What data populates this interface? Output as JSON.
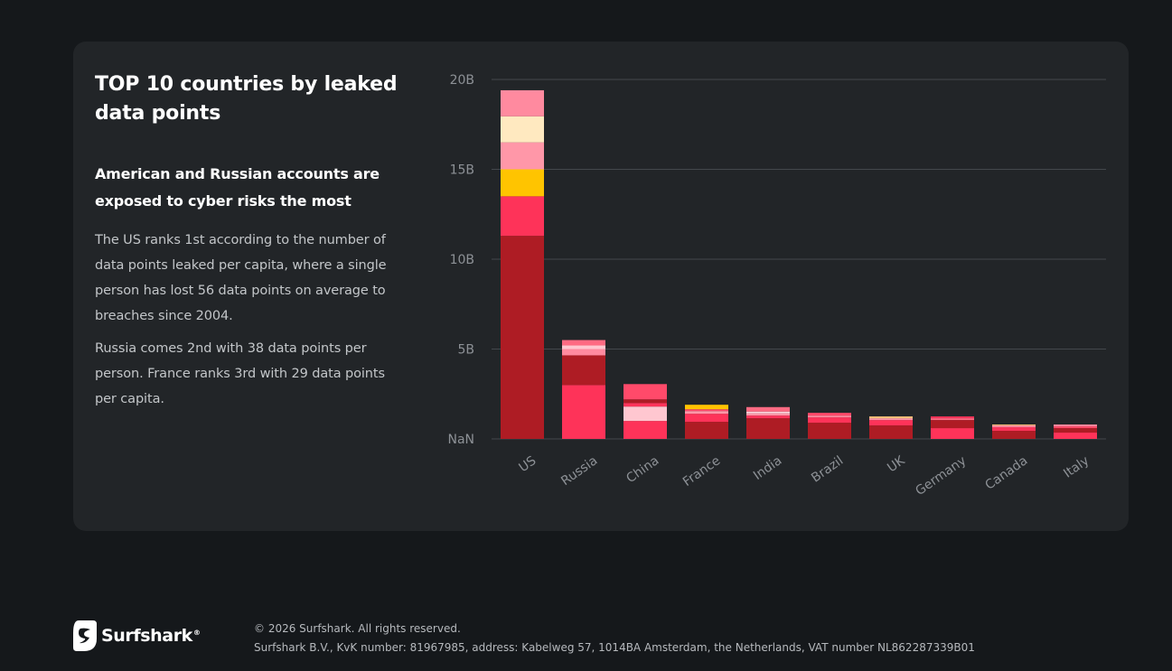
{
  "card": {
    "title": "TOP 10 countries by leaked data points",
    "subtitle": "American and Russian accounts are exposed to cyber risks the most",
    "paragraphs": [
      "The US ranks 1st according to the number of data points leaked per capita, where a single person has lost 56 data points on average to breaches since 2004.",
      "Russia comes 2nd with 38 data points per person. France ranks 3rd with 29 data points per capita."
    ]
  },
  "chart_data": {
    "type": "bar",
    "stacked": true,
    "categories": [
      "US",
      "Russia",
      "China",
      "France",
      "India",
      "Brazil",
      "UK",
      "Germany",
      "Canada",
      "Italy"
    ],
    "yticks": [
      {
        "value": 0,
        "label": "NaN"
      },
      {
        "value": 5,
        "label": "5B"
      },
      {
        "value": 10,
        "label": "10B"
      },
      {
        "value": 15,
        "label": "15B"
      },
      {
        "value": 20,
        "label": "20B"
      }
    ],
    "ylim": [
      0,
      20
    ],
    "unit": "billions",
    "grid": true,
    "legend": "none",
    "segments": [
      [
        {
          "value": 11.3,
          "color": "#ae1c24"
        },
        {
          "value": 2.2,
          "color": "#fe3359"
        },
        {
          "value": 1.5,
          "color": "#ffc400"
        },
        {
          "value": 1.5,
          "color": "#ff97a8"
        },
        {
          "value": 1.45,
          "color": "#ffe9c0"
        },
        {
          "value": 1.45,
          "color": "#ff8a9f"
        }
      ],
      [
        {
          "value": 3.0,
          "color": "#fe3359"
        },
        {
          "value": 1.65,
          "color": "#ae1c24"
        },
        {
          "value": 0.35,
          "color": "#ff8a9f"
        },
        {
          "value": 0.2,
          "color": "#ffc7d0"
        },
        {
          "value": 0.3,
          "color": "#ff6b83"
        }
      ],
      [
        {
          "value": 1.0,
          "color": "#fe3359"
        },
        {
          "value": 0.8,
          "color": "#ffc7d0"
        },
        {
          "value": 0.2,
          "color": "#fe3359"
        },
        {
          "value": 0.2,
          "color": "#ae1c24"
        },
        {
          "value": 0.85,
          "color": "#ff4a6a"
        }
      ],
      [
        {
          "value": 0.95,
          "color": "#ae1c24"
        },
        {
          "value": 0.45,
          "color": "#fe3359"
        },
        {
          "value": 0.15,
          "color": "#ff97a8"
        },
        {
          "value": 0.1,
          "color": "#ff4a6a"
        },
        {
          "value": 0.25,
          "color": "#ffc400"
        }
      ],
      [
        {
          "value": 1.15,
          "color": "#ae1c24"
        },
        {
          "value": 0.15,
          "color": "#fe3359"
        },
        {
          "value": 0.12,
          "color": "#ff97a8"
        },
        {
          "value": 0.1,
          "color": "#ffd5dc"
        },
        {
          "value": 0.25,
          "color": "#ff6b83"
        }
      ],
      [
        {
          "value": 0.9,
          "color": "#ae1c24"
        },
        {
          "value": 0.3,
          "color": "#fe3359"
        },
        {
          "value": 0.1,
          "color": "#ff8a9f"
        },
        {
          "value": 0.15,
          "color": "#ff4a6a"
        }
      ],
      [
        {
          "value": 0.75,
          "color": "#ae1c24"
        },
        {
          "value": 0.3,
          "color": "#fe3359"
        },
        {
          "value": 0.1,
          "color": "#ff97a8"
        },
        {
          "value": 0.1,
          "color": "#ffc47a"
        }
      ],
      [
        {
          "value": 0.6,
          "color": "#fe3359"
        },
        {
          "value": 0.45,
          "color": "#ae1c24"
        },
        {
          "value": 0.1,
          "color": "#ff6b83"
        },
        {
          "value": 0.1,
          "color": "#fe3359"
        }
      ],
      [
        {
          "value": 0.45,
          "color": "#ae1c24"
        },
        {
          "value": 0.2,
          "color": "#fe3359"
        },
        {
          "value": 0.1,
          "color": "#ff8a9f"
        },
        {
          "value": 0.05,
          "color": "#ffc47a"
        }
      ],
      [
        {
          "value": 0.35,
          "color": "#fe3359"
        },
        {
          "value": 0.25,
          "color": "#ae1c24"
        },
        {
          "value": 0.1,
          "color": "#ff4a6a"
        },
        {
          "value": 0.1,
          "color": "#ff8a9f"
        }
      ]
    ]
  },
  "footer": {
    "brand": "Surfshark",
    "registered": "®",
    "copyright": "© 2026 Surfshark. All rights reserved.",
    "company": "Surfshark B.V., KvK number: 81967985, address: Kabelweg 57, 1014BA Amsterdam, the Netherlands, VAT number NL862287339B01"
  },
  "colors": {
    "page_bg": "#15181b",
    "card_bg": "#222528",
    "grid": "#44484c",
    "tick_text": "#8d9196"
  }
}
